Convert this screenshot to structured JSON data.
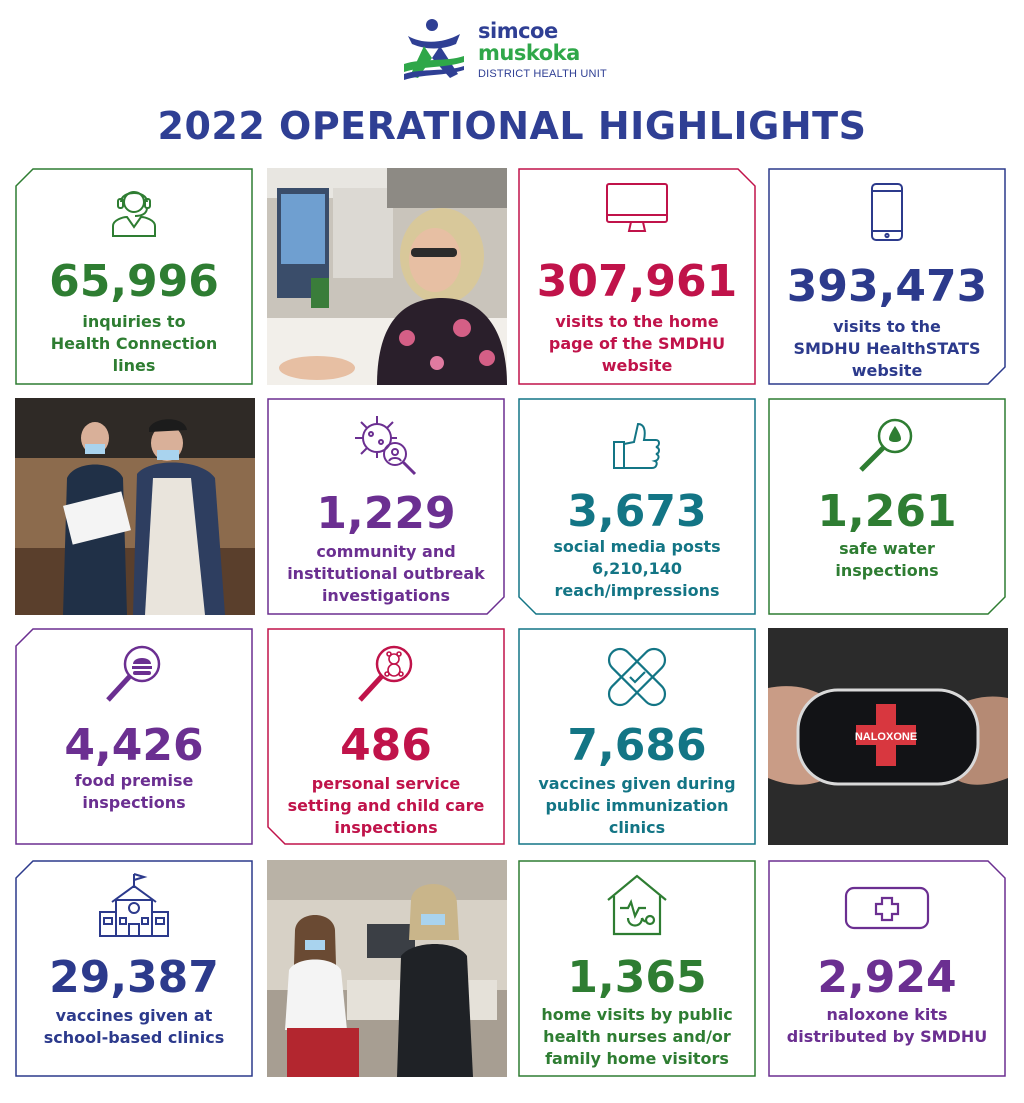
{
  "header": {
    "logo_line1": "simcoe",
    "logo_line2": "muskoka",
    "logo_line3": "DISTRICT HEALTH UNIT",
    "title": "2022 OPERATIONAL HIGHLIGHTS"
  },
  "colors": {
    "green": "#2e7d32",
    "red": "#c0134a",
    "navy": "#2c3a8c",
    "purple": "#6b2f91",
    "teal": "#137585"
  },
  "cards": {
    "health_connection": {
      "number": "65,996",
      "line1": "inquiries to",
      "line2": "Health Connection",
      "line3": "lines",
      "icon": "headset-agent-icon"
    },
    "website_home": {
      "number": "307,961",
      "line1": "visits to the home",
      "line2": "page of the SMDHU",
      "line3": "website",
      "icon": "monitor-icon"
    },
    "healthstats": {
      "number": "393,473",
      "line1": "visits to the",
      "line2": "SMDHU HealthSTATS",
      "line3": "website",
      "icon": "smartphone-icon"
    },
    "outbreak": {
      "number": "1,229",
      "line1": "community and",
      "line2": "institutional outbreak",
      "line3": "investigations",
      "icon": "virus-magnifier-icon"
    },
    "social_media": {
      "number": "3,673",
      "line1": "social media posts",
      "line2": "6,210,140",
      "line3": "reach/impressions",
      "icon": "thumbs-up-icon"
    },
    "safe_water": {
      "number": "1,261",
      "line1": "safe water",
      "line2": "inspections",
      "icon": "water-drop-magnifier-icon"
    },
    "food_premise": {
      "number": "4,426",
      "line1": "food premise",
      "line2": "inspections",
      "icon": "burger-magnifier-icon"
    },
    "personal_service": {
      "number": "486",
      "line1": "personal service",
      "line2": "setting and child care",
      "line3": "inspections",
      "icon": "teddy-bear-magnifier-icon"
    },
    "public_immunization": {
      "number": "7,686",
      "line1": "vaccines given during",
      "line2": "public immunization",
      "line3": "clinics",
      "icon": "bandage-icon"
    },
    "school_clinics": {
      "number": "29,387",
      "line1": "vaccines given at",
      "line2": "school-based clinics",
      "icon": "school-icon"
    },
    "home_visits": {
      "number": "1,365",
      "line1": "home visits by public",
      "line2": "health nurses and/or",
      "line3": "family home visitors",
      "icon": "house-stethoscope-icon"
    },
    "naloxone": {
      "number": "2,924",
      "line1": "naloxone kits",
      "line2": "distributed by SMDHU",
      "icon": "first-aid-kit-icon"
    }
  },
  "photos": {
    "naloxone_kit_label": "NALOXONE"
  }
}
